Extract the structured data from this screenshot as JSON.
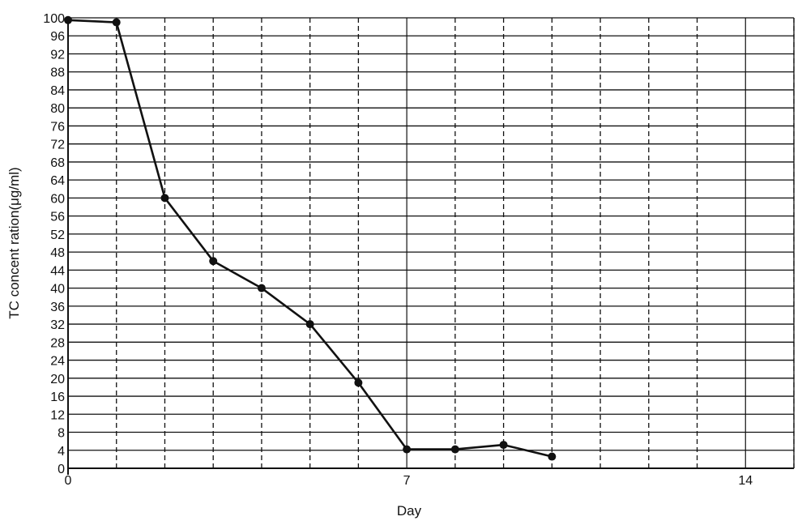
{
  "chart_data": {
    "type": "line",
    "title": "",
    "xlabel": "Day",
    "ylabel": "TC concent ration(μg/ml)",
    "xlim": [
      0,
      15
    ],
    "ylim": [
      0,
      100
    ],
    "x_ticks": [
      0,
      7,
      14
    ],
    "x_minor_grid_step": 1,
    "y_ticks": [
      0,
      4,
      8,
      12,
      16,
      20,
      24,
      28,
      32,
      36,
      40,
      44,
      48,
      52,
      56,
      60,
      64,
      68,
      72,
      76,
      80,
      84,
      88,
      92,
      96,
      100
    ],
    "grid": true,
    "legend": "none",
    "series": [
      {
        "x": [
          0,
          1,
          2,
          3,
          4,
          5,
          6,
          7,
          8,
          9,
          10
        ],
        "y": [
          99.5,
          99,
          60,
          46,
          40,
          32,
          19,
          4.2,
          4.2,
          5.2,
          2.6
        ]
      }
    ],
    "colors": {
      "line": "#111111",
      "marker": "#111111",
      "grid": "#111111"
    }
  }
}
